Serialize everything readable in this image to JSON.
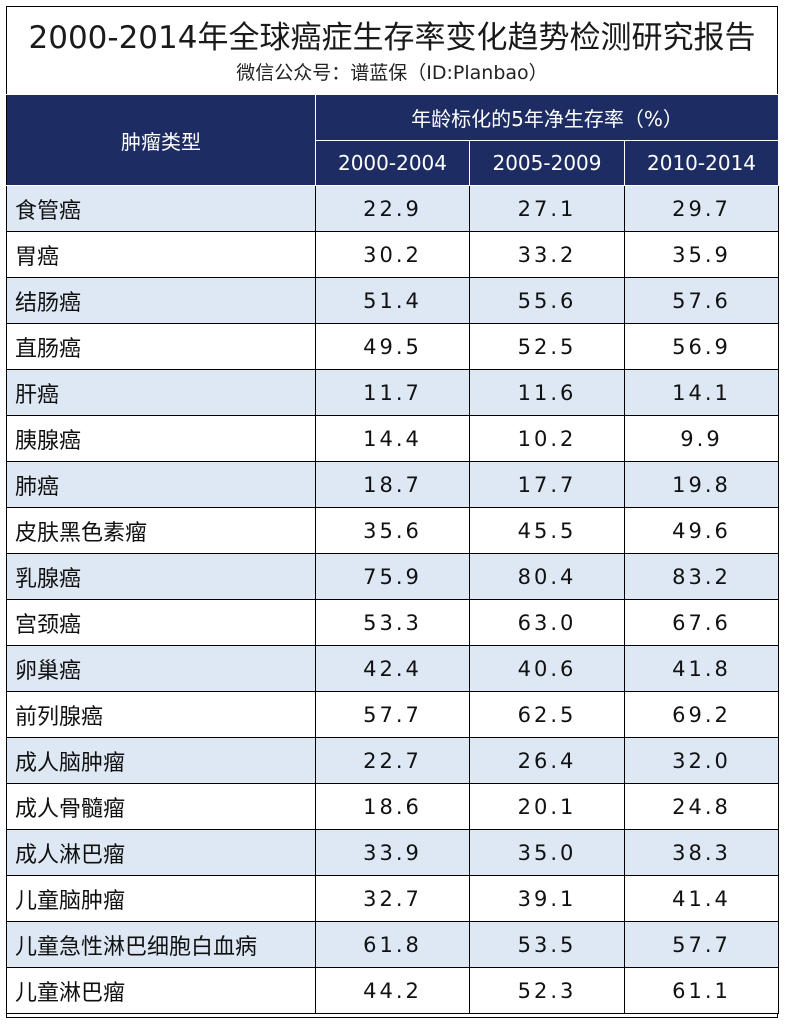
{
  "title": "2000-2014年全球癌症生存率变化趋势检测研究报告",
  "subtitle": "微信公众号：谱蓝保（ID:Planbao）",
  "table": {
    "type_header": "肿瘤类型",
    "group_header": "年龄标化的5年净生存率（%）",
    "periods": [
      "2000-2004",
      "2005-2009",
      "2010-2014"
    ],
    "rows": [
      {
        "name": "食管癌",
        "v": [
          "22.9",
          "27.1",
          "29.7"
        ]
      },
      {
        "name": "胃癌",
        "v": [
          "30.2",
          "33.2",
          "35.9"
        ]
      },
      {
        "name": "结肠癌",
        "v": [
          "51.4",
          "55.6",
          "57.6"
        ]
      },
      {
        "name": "直肠癌",
        "v": [
          "49.5",
          "52.5",
          "56.9"
        ]
      },
      {
        "name": "肝癌",
        "v": [
          "11.7",
          "11.6",
          "14.1"
        ]
      },
      {
        "name": "胰腺癌",
        "v": [
          "14.4",
          "10.2",
          "9.9"
        ]
      },
      {
        "name": "肺癌",
        "v": [
          "18.7",
          "17.7",
          "19.8"
        ]
      },
      {
        "name": "皮肤黑色素瘤",
        "v": [
          "35.6",
          "45.5",
          "49.6"
        ]
      },
      {
        "name": "乳腺癌",
        "v": [
          "75.9",
          "80.4",
          "83.2"
        ]
      },
      {
        "name": "宫颈癌",
        "v": [
          "53.3",
          "63.0",
          "67.6"
        ]
      },
      {
        "name": "卵巢癌",
        "v": [
          "42.4",
          "40.6",
          "41.8"
        ]
      },
      {
        "name": "前列腺癌",
        "v": [
          "57.7",
          "62.5",
          "69.2"
        ]
      },
      {
        "name": "成人脑肿瘤",
        "v": [
          "22.7",
          "26.4",
          "32.0"
        ]
      },
      {
        "name": "成人骨髓瘤",
        "v": [
          "18.6",
          "20.1",
          "24.8"
        ]
      },
      {
        "name": "成人淋巴瘤",
        "v": [
          "33.9",
          "35.0",
          "38.3"
        ]
      },
      {
        "name": "儿童脑肿瘤",
        "v": [
          "32.7",
          "39.1",
          "41.4"
        ]
      },
      {
        "name": "儿童急性淋巴细胞白血病",
        "v": [
          "61.8",
          "53.5",
          "57.7"
        ]
      },
      {
        "name": "儿童淋巴瘤",
        "v": [
          "44.2",
          "52.3",
          "61.1"
        ]
      }
    ]
  },
  "colors": {
    "header_bg": "#1d2d63",
    "stripe": "#dde8f4"
  }
}
